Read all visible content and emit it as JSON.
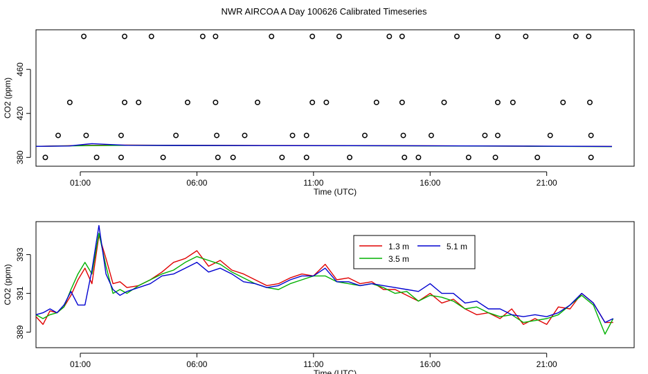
{
  "page": {
    "title": "NWR AIRCOA A  Day 100626  Calibrated Timeseries"
  },
  "chart_data": [
    {
      "type": "scatter",
      "title": "",
      "xlabel": "Time (UTC)",
      "ylabel": "CO2 (ppm)",
      "xlim": [
        -0.9,
        24.75
      ],
      "ylim": [
        372,
        496
      ],
      "x_ticks": [
        1,
        6,
        11,
        16,
        21
      ],
      "x_tick_labels": [
        "01:00",
        "06:00",
        "11:00",
        "16:00",
        "21:00"
      ],
      "y_ticks": [
        380,
        420,
        460
      ],
      "y_tick_labels": [
        "380",
        "420",
        "460"
      ],
      "markers": [
        {
          "x": 1.15,
          "y": 490
        },
        {
          "x": 2.9,
          "y": 490
        },
        {
          "x": 4.05,
          "y": 490
        },
        {
          "x": 6.25,
          "y": 490
        },
        {
          "x": 6.8,
          "y": 490
        },
        {
          "x": 9.2,
          "y": 490
        },
        {
          "x": 10.95,
          "y": 490
        },
        {
          "x": 12.1,
          "y": 490
        },
        {
          "x": 14.25,
          "y": 490
        },
        {
          "x": 14.8,
          "y": 490
        },
        {
          "x": 17.15,
          "y": 490
        },
        {
          "x": 18.9,
          "y": 490
        },
        {
          "x": 20.1,
          "y": 490
        },
        {
          "x": 22.25,
          "y": 490
        },
        {
          "x": 22.8,
          "y": 490
        },
        {
          "x": 0.55,
          "y": 430
        },
        {
          "x": 2.9,
          "y": 430
        },
        {
          "x": 3.5,
          "y": 430
        },
        {
          "x": 5.6,
          "y": 430
        },
        {
          "x": 6.8,
          "y": 430
        },
        {
          "x": 8.6,
          "y": 430
        },
        {
          "x": 10.95,
          "y": 430
        },
        {
          "x": 11.55,
          "y": 430
        },
        {
          "x": 13.7,
          "y": 430
        },
        {
          "x": 14.8,
          "y": 430
        },
        {
          "x": 16.6,
          "y": 430
        },
        {
          "x": 18.9,
          "y": 430
        },
        {
          "x": 19.55,
          "y": 430
        },
        {
          "x": 21.7,
          "y": 430
        },
        {
          "x": 22.85,
          "y": 430
        },
        {
          "x": 0.05,
          "y": 400
        },
        {
          "x": 1.25,
          "y": 400
        },
        {
          "x": 2.75,
          "y": 400
        },
        {
          "x": 5.1,
          "y": 400
        },
        {
          "x": 6.85,
          "y": 400
        },
        {
          "x": 8.05,
          "y": 400
        },
        {
          "x": 10.1,
          "y": 400
        },
        {
          "x": 10.7,
          "y": 400
        },
        {
          "x": 13.2,
          "y": 400
        },
        {
          "x": 14.85,
          "y": 400
        },
        {
          "x": 16.05,
          "y": 400
        },
        {
          "x": 18.35,
          "y": 400
        },
        {
          "x": 18.9,
          "y": 400
        },
        {
          "x": 21.15,
          "y": 400
        },
        {
          "x": 22.9,
          "y": 400
        },
        {
          "x": -0.5,
          "y": 380
        },
        {
          "x": 1.7,
          "y": 380
        },
        {
          "x": 2.75,
          "y": 380
        },
        {
          "x": 4.55,
          "y": 380
        },
        {
          "x": 6.9,
          "y": 380
        },
        {
          "x": 7.55,
          "y": 380
        },
        {
          "x": 9.65,
          "y": 380
        },
        {
          "x": 10.7,
          "y": 380
        },
        {
          "x": 12.55,
          "y": 380
        },
        {
          "x": 14.9,
          "y": 380
        },
        {
          "x": 15.5,
          "y": 380
        },
        {
          "x": 17.65,
          "y": 380
        },
        {
          "x": 18.8,
          "y": 380
        },
        {
          "x": 20.6,
          "y": 380
        },
        {
          "x": 22.9,
          "y": 380
        }
      ],
      "series": [
        {
          "name": "1.3 m",
          "color": "#e00000",
          "x": [
            -1,
            1,
            3,
            5,
            10,
            15,
            20,
            23.8
          ],
          "values": [
            390,
            390.8,
            391.2,
            391,
            390.8,
            390.6,
            390.2,
            390
          ]
        },
        {
          "name": "3.5 m",
          "color": "#00b000",
          "x": [
            -1,
            1,
            3,
            5,
            10,
            15,
            20,
            23.8
          ],
          "values": [
            390,
            390.6,
            391,
            390.9,
            390.7,
            390.5,
            390.2,
            389.8
          ]
        },
        {
          "name": "5.1 m",
          "color": "#0000d0",
          "x": [
            -1,
            0.5,
            1.5,
            3,
            5,
            10,
            15,
            20,
            23.8
          ],
          "values": [
            390,
            390.4,
            392.5,
            391,
            390.9,
            390.7,
            390.6,
            390.3,
            390
          ]
        }
      ]
    },
    {
      "type": "line",
      "title": "",
      "xlabel": "Time (UTC)",
      "ylabel": "CO2 (ppm)",
      "xlim": [
        -0.9,
        24.75
      ],
      "ylim": [
        388.2,
        394.7
      ],
      "x_ticks": [
        1,
        6,
        11,
        16,
        21
      ],
      "x_tick_labels": [
        "01:00",
        "06:00",
        "11:00",
        "16:00",
        "21:00"
      ],
      "y_ticks": [
        389,
        391,
        393
      ],
      "y_tick_labels": [
        "389",
        "391",
        "393"
      ],
      "legend": {
        "position": "top-center",
        "entries": [
          "1.3 m",
          "3.5 m",
          "5.1 m"
        ]
      },
      "series": [
        {
          "name": "1.3 m",
          "color": "#e00000",
          "x": [
            -0.9,
            -0.6,
            -0.3,
            0,
            0.3,
            0.6,
            0.9,
            1.2,
            1.5,
            1.8,
            2.1,
            2.4,
            2.7,
            3,
            3.5,
            4,
            4.5,
            5,
            5.5,
            6,
            6.5,
            7,
            7.5,
            8,
            8.5,
            9,
            9.5,
            10,
            10.5,
            11,
            11.5,
            12,
            12.5,
            13,
            13.5,
            14,
            14.5,
            15,
            15.5,
            16,
            16.5,
            17,
            17.5,
            18,
            18.5,
            19,
            19.5,
            20,
            20.5,
            21,
            21.5,
            22,
            22.5,
            23,
            23.5,
            23.85
          ],
          "values": [
            389.8,
            389.4,
            390.1,
            390.0,
            390.3,
            390.9,
            391.7,
            392.3,
            391.5,
            394.0,
            392.8,
            391.5,
            391.6,
            391.3,
            391.4,
            391.7,
            392.1,
            392.6,
            392.8,
            393.2,
            392.4,
            392.7,
            392.2,
            392.0,
            391.7,
            391.4,
            391.5,
            391.8,
            392.0,
            391.9,
            392.5,
            391.7,
            391.8,
            391.5,
            391.6,
            391.2,
            391.2,
            390.9,
            390.6,
            391.0,
            390.5,
            390.7,
            390.2,
            389.9,
            390.0,
            389.7,
            390.2,
            389.4,
            389.7,
            389.4,
            390.3,
            390.2,
            391.0,
            390.5,
            389.5,
            389.5
          ]
        },
        {
          "name": "3.5 m",
          "color": "#00b000",
          "x": [
            -0.9,
            -0.6,
            -0.3,
            0,
            0.3,
            0.6,
            0.9,
            1.2,
            1.5,
            1.8,
            2.1,
            2.4,
            2.7,
            3,
            3.5,
            4,
            4.5,
            5,
            5.5,
            6,
            6.5,
            7,
            7.5,
            8,
            8.5,
            9,
            9.5,
            10,
            10.5,
            11,
            11.5,
            12,
            12.5,
            13,
            13.5,
            14,
            14.5,
            15,
            15.5,
            16,
            16.5,
            17,
            17.5,
            18,
            18.5,
            19,
            19.5,
            20,
            20.5,
            21,
            21.5,
            22,
            22.5,
            23,
            23.5,
            23.85
          ],
          "values": [
            389.9,
            389.7,
            389.9,
            390.0,
            390.3,
            391.2,
            392.0,
            392.6,
            392.0,
            394.1,
            392.4,
            391.0,
            391.2,
            391.0,
            391.4,
            391.7,
            392.0,
            392.2,
            392.6,
            392.9,
            392.7,
            392.5,
            392.1,
            391.8,
            391.5,
            391.3,
            391.2,
            391.5,
            391.7,
            391.9,
            391.9,
            391.6,
            391.5,
            391.4,
            391.5,
            391.3,
            391.0,
            391.1,
            390.6,
            390.9,
            390.8,
            390.6,
            390.2,
            390.3,
            390.0,
            389.8,
            389.9,
            389.5,
            389.6,
            389.7,
            389.9,
            390.4,
            390.9,
            390.4,
            388.9,
            389.7
          ]
        },
        {
          "name": "5.1 m",
          "color": "#0000d0",
          "x": [
            -0.9,
            -0.6,
            -0.3,
            0,
            0.3,
            0.6,
            0.9,
            1.2,
            1.5,
            1.8,
            2.1,
            2.4,
            2.7,
            3,
            3.5,
            4,
            4.5,
            5,
            5.5,
            6,
            6.5,
            7,
            7.5,
            8,
            8.5,
            9,
            9.5,
            10,
            10.5,
            11,
            11.5,
            12,
            12.5,
            13,
            13.5,
            14,
            14.5,
            15,
            15.5,
            16,
            16.5,
            17,
            17.5,
            18,
            18.5,
            19,
            19.5,
            20,
            20.5,
            21,
            21.5,
            22,
            22.5,
            23,
            23.5,
            23.85
          ],
          "values": [
            389.9,
            390.0,
            390.2,
            390.0,
            390.4,
            391.1,
            390.4,
            390.4,
            392.2,
            394.5,
            392.0,
            391.2,
            390.9,
            391.1,
            391.3,
            391.5,
            391.9,
            392.0,
            392.3,
            392.6,
            392.1,
            392.3,
            392.0,
            391.6,
            391.5,
            391.3,
            391.4,
            391.7,
            391.9,
            391.9,
            392.3,
            391.6,
            391.6,
            391.4,
            391.5,
            391.4,
            391.3,
            391.2,
            391.1,
            391.5,
            391.0,
            391.0,
            390.5,
            390.6,
            390.2,
            390.2,
            389.9,
            389.8,
            389.9,
            389.8,
            390.0,
            390.4,
            391.0,
            390.5,
            389.5,
            389.7
          ]
        }
      ]
    }
  ]
}
